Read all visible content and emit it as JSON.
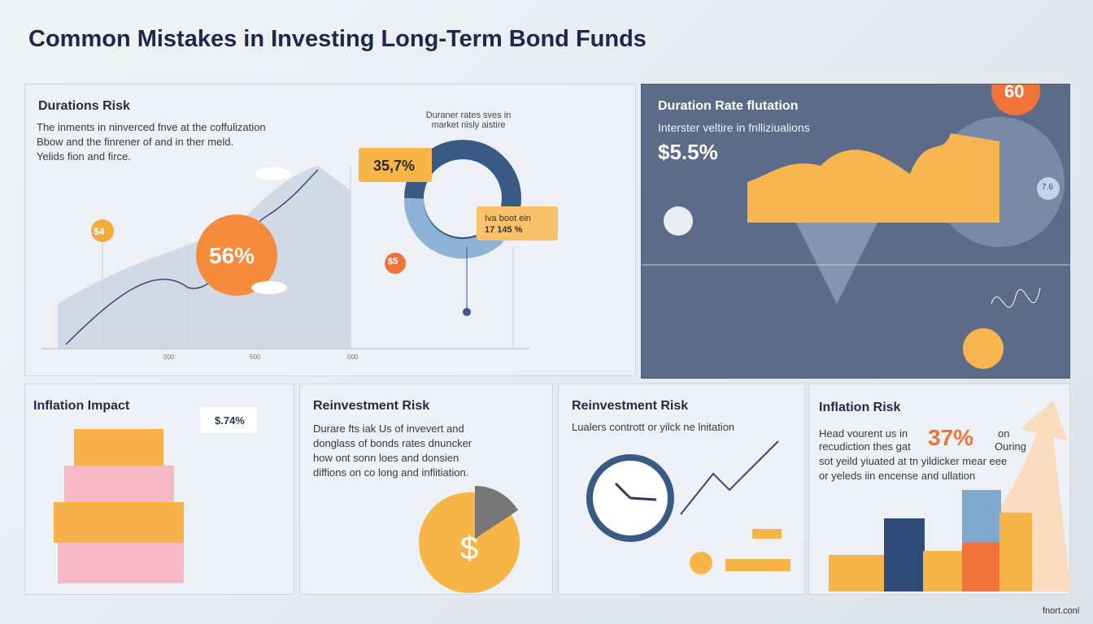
{
  "header": {
    "title": "Common Mistakes in Investing Long-Term Bond Funds"
  },
  "panels": [
    {
      "title": "Durations Risk",
      "body": [
        "The inments in ninverced fnve at the coffulization",
        "Bbow and the finrener of and in ther meld.",
        "Yelids fion and firce."
      ],
      "callouts": [
        "56%",
        "$4",
        "35,7%",
        "$5"
      ],
      "note": [
        "Duraner rates sves in",
        "market nisly aistire"
      ],
      "tag": [
        "Iva boot ein",
        "17 145 %"
      ],
      "axis": [
        "000",
        "500",
        "000"
      ]
    },
    {
      "title": "Duration Rate flutation",
      "body": [
        "Interster veltire in fnlliziualions"
      ],
      "value": "$5.5%",
      "badges": [
        "60",
        "7.6"
      ]
    },
    {
      "title": "Inflation Impact",
      "badge": "$.74%"
    },
    {
      "title": "Reinvestment Risk",
      "body": [
        "Durare fts iak Us of invevert and",
        "donglass of bonds rates dnuncker",
        "how ont sonn loes and donsien",
        "diffions on co long and inflitiation."
      ]
    },
    {
      "title": "Reinvestment Risk",
      "body": [
        "Lualers contrott or yilck ne lnitation"
      ]
    },
    {
      "title": "Inflation Risk",
      "body": [
        "Head vourent us in",
        "recudiction thes gat",
        "sot yeild yiuated at tn yildicker mear eee",
        "or yeleds iin encense and ullation"
      ],
      "value": "37%",
      "side": [
        "on",
        "Ouring"
      ]
    }
  ],
  "footer": "fnort.conl"
}
